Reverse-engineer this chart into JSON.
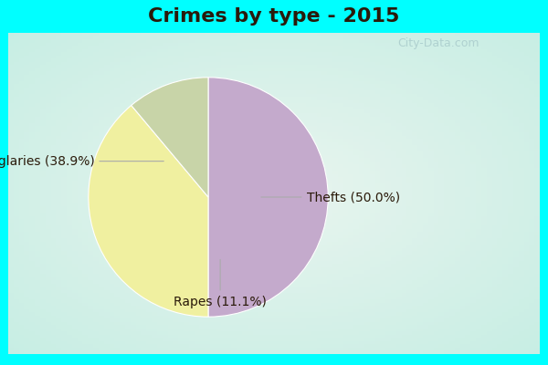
{
  "title": "Crimes by type - 2015",
  "slices": [
    {
      "label": "Thefts",
      "pct": 50.0,
      "color": "#C4AACC"
    },
    {
      "label": "Burglaries",
      "pct": 38.9,
      "color": "#F0F0A0"
    },
    {
      "label": "Rapes",
      "pct": 11.1,
      "color": "#C8D4A8"
    }
  ],
  "background_border": "#00FFFF",
  "background_center": "#E8F5EE",
  "title_fontsize": 16,
  "title_color": "#2a1a0a",
  "label_fontsize": 10,
  "label_color": "#2a1a0a",
  "watermark_text": "City-Data.com",
  "watermark_color": "#aacccc",
  "border_width": 10
}
